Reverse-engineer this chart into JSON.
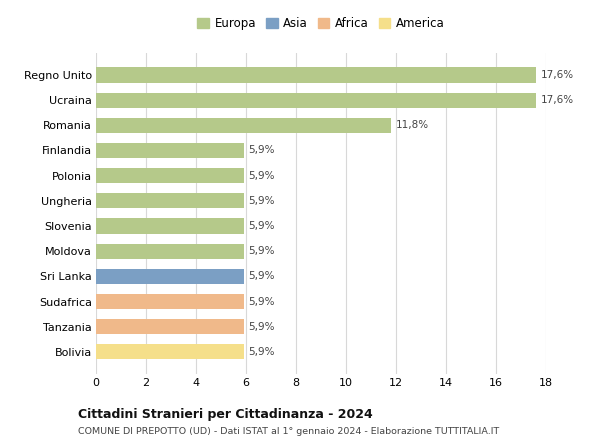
{
  "countries": [
    "Regno Unito",
    "Ucraina",
    "Romania",
    "Finlandia",
    "Polonia",
    "Ungheria",
    "Slovenia",
    "Moldova",
    "Sri Lanka",
    "Sudafrica",
    "Tanzania",
    "Bolivia"
  ],
  "values": [
    17.6,
    17.6,
    11.8,
    5.9,
    5.9,
    5.9,
    5.9,
    5.9,
    5.9,
    5.9,
    5.9,
    5.9
  ],
  "bar_colors": [
    "#b5c98a",
    "#b5c98a",
    "#b5c98a",
    "#b5c98a",
    "#b5c98a",
    "#b5c98a",
    "#b5c98a",
    "#b5c98a",
    "#7b9fc4",
    "#f0b98a",
    "#f0b98a",
    "#f5df8a"
  ],
  "labels": [
    "17,6%",
    "17,6%",
    "11,8%",
    "5,9%",
    "5,9%",
    "5,9%",
    "5,9%",
    "5,9%",
    "5,9%",
    "5,9%",
    "5,9%",
    "5,9%"
  ],
  "legend_labels": [
    "Europa",
    "Asia",
    "Africa",
    "America"
  ],
  "legend_colors": [
    "#b5c98a",
    "#7b9fc4",
    "#f0b98a",
    "#f5df8a"
  ],
  "xlim": [
    0,
    18
  ],
  "xticks": [
    0,
    2,
    4,
    6,
    8,
    10,
    12,
    14,
    16,
    18
  ],
  "title": "Cittadini Stranieri per Cittadinanza - 2024",
  "subtitle": "COMUNE DI PREPOTTO (UD) - Dati ISTAT al 1° gennaio 2024 - Elaborazione TUTTITALIA.IT",
  "bg_color": "#ffffff",
  "grid_color": "#d8d8d8",
  "bar_height": 0.6
}
